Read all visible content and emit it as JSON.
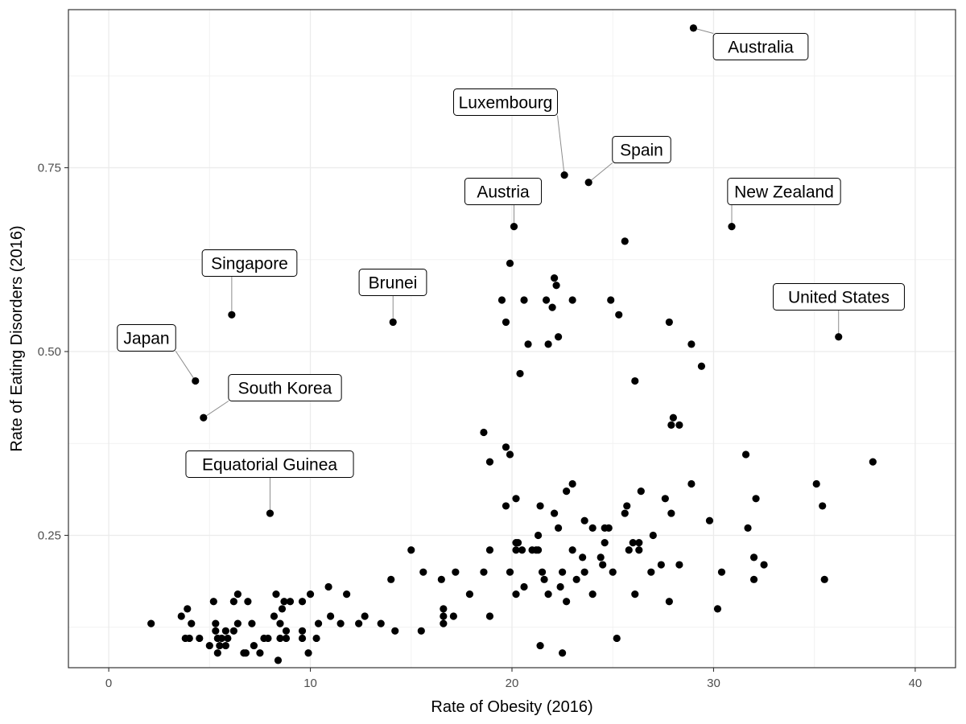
{
  "chart_data": {
    "type": "scatter",
    "title": "",
    "xlabel": "Rate of Obesity (2016)",
    "ylabel": "Rate of Eating Disorders (2016)",
    "xlim": [
      -2,
      42
    ],
    "ylim": [
      0.07,
      0.965
    ],
    "x_ticks": [
      0,
      10,
      20,
      30,
      40
    ],
    "x_tick_labels": [
      "0",
      "10",
      "20",
      "30",
      "40"
    ],
    "y_ticks": [
      0.25,
      0.5,
      0.75
    ],
    "y_tick_labels": [
      "0.25",
      "0.50",
      "0.75"
    ],
    "grid": true,
    "legend": "none",
    "point_color": "#000000",
    "labeled_points": [
      {
        "label": "Australia",
        "x": 29.0,
        "y": 0.94
      },
      {
        "label": "Luxembourg",
        "x": 22.6,
        "y": 0.74
      },
      {
        "label": "Spain",
        "x": 23.8,
        "y": 0.73
      },
      {
        "label": "Austria",
        "x": 20.1,
        "y": 0.67
      },
      {
        "label": "New Zealand",
        "x": 30.9,
        "y": 0.67
      },
      {
        "label": "Singapore",
        "x": 6.1,
        "y": 0.55
      },
      {
        "label": "Brunei",
        "x": 14.1,
        "y": 0.54
      },
      {
        "label": "United States",
        "x": 36.2,
        "y": 0.52
      },
      {
        "label": "Japan",
        "x": 4.3,
        "y": 0.46
      },
      {
        "label": "South Korea",
        "x": 4.7,
        "y": 0.41
      },
      {
        "label": "Equatorial Guinea",
        "x": 8.0,
        "y": 0.28
      }
    ],
    "points": [
      [
        2.1,
        0.13
      ],
      [
        3.6,
        0.14
      ],
      [
        3.8,
        0.11
      ],
      [
        3.9,
        0.15
      ],
      [
        4.0,
        0.11
      ],
      [
        4.1,
        0.13
      ],
      [
        4.5,
        0.11
      ],
      [
        5.0,
        0.1
      ],
      [
        5.2,
        0.16
      ],
      [
        5.3,
        0.13
      ],
      [
        5.3,
        0.12
      ],
      [
        5.4,
        0.11
      ],
      [
        5.4,
        0.09
      ],
      [
        5.5,
        0.1
      ],
      [
        5.6,
        0.11
      ],
      [
        5.8,
        0.12
      ],
      [
        5.8,
        0.1
      ],
      [
        5.9,
        0.11
      ],
      [
        6.2,
        0.12
      ],
      [
        6.2,
        0.16
      ],
      [
        6.4,
        0.17
      ],
      [
        6.4,
        0.13
      ],
      [
        6.7,
        0.09
      ],
      [
        6.8,
        0.09
      ],
      [
        6.9,
        0.16
      ],
      [
        7.1,
        0.13
      ],
      [
        7.2,
        0.1
      ],
      [
        7.5,
        0.09
      ],
      [
        7.7,
        0.11
      ],
      [
        7.9,
        0.11
      ],
      [
        8.2,
        0.14
      ],
      [
        8.3,
        0.17
      ],
      [
        8.4,
        0.08
      ],
      [
        8.5,
        0.13
      ],
      [
        8.5,
        0.11
      ],
      [
        8.6,
        0.15
      ],
      [
        8.7,
        0.16
      ],
      [
        8.8,
        0.12
      ],
      [
        8.8,
        0.11
      ],
      [
        9.0,
        0.16
      ],
      [
        9.6,
        0.16
      ],
      [
        9.6,
        0.12
      ],
      [
        9.6,
        0.11
      ],
      [
        9.9,
        0.09
      ],
      [
        10.0,
        0.17
      ],
      [
        10.3,
        0.11
      ],
      [
        10.4,
        0.13
      ],
      [
        10.9,
        0.18
      ],
      [
        11.0,
        0.14
      ],
      [
        11.5,
        0.13
      ],
      [
        11.8,
        0.17
      ],
      [
        12.4,
        0.13
      ],
      [
        12.7,
        0.14
      ],
      [
        13.5,
        0.13
      ],
      [
        14.0,
        0.19
      ],
      [
        14.2,
        0.12
      ],
      [
        15.0,
        0.23
      ],
      [
        15.5,
        0.12
      ],
      [
        15.6,
        0.2
      ],
      [
        16.5,
        0.19
      ],
      [
        16.6,
        0.15
      ],
      [
        16.6,
        0.14
      ],
      [
        16.6,
        0.13
      ],
      [
        17.1,
        0.14
      ],
      [
        17.2,
        0.2
      ],
      [
        17.9,
        0.17
      ],
      [
        18.6,
        0.2
      ],
      [
        18.6,
        0.39
      ],
      [
        18.9,
        0.35
      ],
      [
        18.9,
        0.23
      ],
      [
        18.9,
        0.14
      ],
      [
        19.5,
        0.57
      ],
      [
        19.7,
        0.54
      ],
      [
        19.7,
        0.37
      ],
      [
        19.7,
        0.29
      ],
      [
        19.9,
        0.62
      ],
      [
        19.9,
        0.36
      ],
      [
        19.9,
        0.2
      ],
      [
        20.2,
        0.3
      ],
      [
        20.2,
        0.24
      ],
      [
        20.2,
        0.23
      ],
      [
        20.2,
        0.17
      ],
      [
        20.3,
        0.24
      ],
      [
        20.4,
        0.47
      ],
      [
        20.5,
        0.23
      ],
      [
        20.6,
        0.57
      ],
      [
        20.6,
        0.18
      ],
      [
        20.8,
        0.51
      ],
      [
        21.0,
        0.23
      ],
      [
        21.2,
        0.23
      ],
      [
        21.3,
        0.25
      ],
      [
        21.3,
        0.23
      ],
      [
        21.4,
        0.29
      ],
      [
        21.4,
        0.1
      ],
      [
        21.5,
        0.2
      ],
      [
        21.6,
        0.19
      ],
      [
        21.7,
        0.57
      ],
      [
        21.8,
        0.17
      ],
      [
        21.8,
        0.51
      ],
      [
        22.0,
        0.56
      ],
      [
        22.1,
        0.6
      ],
      [
        22.1,
        0.28
      ],
      [
        22.2,
        0.59
      ],
      [
        22.3,
        0.52
      ],
      [
        22.3,
        0.26
      ],
      [
        22.4,
        0.18
      ],
      [
        22.5,
        0.2
      ],
      [
        22.5,
        0.09
      ],
      [
        22.7,
        0.31
      ],
      [
        22.7,
        0.16
      ],
      [
        23.0,
        0.57
      ],
      [
        23.0,
        0.32
      ],
      [
        23.0,
        0.23
      ],
      [
        23.2,
        0.19
      ],
      [
        23.5,
        0.22
      ],
      [
        23.6,
        0.27
      ],
      [
        23.6,
        0.2
      ],
      [
        24.0,
        0.17
      ],
      [
        24.0,
        0.26
      ],
      [
        24.4,
        0.22
      ],
      [
        24.5,
        0.21
      ],
      [
        24.6,
        0.26
      ],
      [
        24.6,
        0.24
      ],
      [
        24.8,
        0.26
      ],
      [
        24.9,
        0.57
      ],
      [
        25.0,
        0.2
      ],
      [
        25.2,
        0.11
      ],
      [
        25.3,
        0.55
      ],
      [
        25.6,
        0.28
      ],
      [
        25.6,
        0.65
      ],
      [
        25.7,
        0.29
      ],
      [
        25.8,
        0.23
      ],
      [
        26.0,
        0.24
      ],
      [
        26.1,
        0.46
      ],
      [
        26.1,
        0.17
      ],
      [
        26.3,
        0.24
      ],
      [
        26.3,
        0.23
      ],
      [
        26.4,
        0.31
      ],
      [
        26.9,
        0.2
      ],
      [
        27.0,
        0.25
      ],
      [
        27.4,
        0.21
      ],
      [
        27.6,
        0.3
      ],
      [
        27.8,
        0.16
      ],
      [
        27.8,
        0.54
      ],
      [
        27.9,
        0.28
      ],
      [
        27.9,
        0.4
      ],
      [
        28.0,
        0.41
      ],
      [
        28.3,
        0.4
      ],
      [
        28.3,
        0.21
      ],
      [
        28.9,
        0.51
      ],
      [
        28.9,
        0.32
      ],
      [
        29.4,
        0.48
      ],
      [
        29.8,
        0.27
      ],
      [
        30.2,
        0.15
      ],
      [
        30.4,
        0.2
      ],
      [
        31.6,
        0.36
      ],
      [
        31.7,
        0.26
      ],
      [
        32.0,
        0.19
      ],
      [
        32.0,
        0.22
      ],
      [
        32.1,
        0.3
      ],
      [
        32.5,
        0.21
      ],
      [
        35.1,
        0.32
      ],
      [
        35.4,
        0.29
      ],
      [
        35.5,
        0.19
      ],
      [
        37.9,
        0.35
      ]
    ]
  }
}
